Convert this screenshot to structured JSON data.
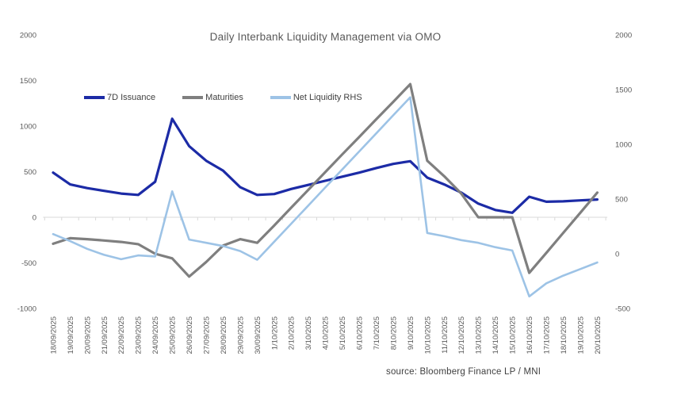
{
  "chart": {
    "title": "Daily Interbank Liquidity Management via OMO",
    "source": "source: Bloomberg Finance LP / MNI"
  },
  "chart_data": {
    "type": "line",
    "title": "Daily Interbank Liquidity Management via OMO",
    "legend_position": "top",
    "grid": "zero-line-only",
    "categories": [
      "18/09/2025",
      "19/09/2025",
      "20/09/2025",
      "21/09/2025",
      "22/09/2025",
      "23/09/2025",
      "24/09/2025",
      "25/09/2025",
      "26/09/2025",
      "27/09/2025",
      "28/09/2025",
      "29/09/2025",
      "30/09/2025",
      "1/10/2025",
      "2/10/2025",
      "3/10/2025",
      "4/10/2025",
      "5/10/2025",
      "6/10/2025",
      "7/10/2025",
      "8/10/2025",
      "9/10/2025",
      "10/10/2025",
      "11/10/2025",
      "12/10/2025",
      "13/10/2025",
      "14/10/2025",
      "15/10/2025",
      "16/10/2025",
      "17/10/2025",
      "18/10/2025",
      "19/10/2025",
      "20/10/2025"
    ],
    "left_axis": {
      "ticks": [
        2000,
        1500,
        1000,
        500,
        0,
        -500,
        -1000
      ],
      "min": -1000,
      "max": 2000
    },
    "right_axis": {
      "ticks": [
        2000,
        1500,
        1000,
        500,
        0,
        -500
      ],
      "min": -500,
      "max": 2000
    },
    "series": [
      {
        "name": "7D Issuance",
        "axis": "left",
        "color": "#1c2ba6",
        "width": 3.2,
        "values": [
          490,
          360,
          320,
          290,
          260,
          245,
          390,
          1080,
          780,
          620,
          510,
          330,
          245,
          255,
          310,
          355,
          400,
          445,
          490,
          540,
          585,
          615,
          435,
          360,
          270,
          150,
          80,
          50,
          225,
          170,
          175,
          185,
          195
        ]
      },
      {
        "name": "Maturities",
        "axis": "left",
        "color": "#7f7f7f",
        "width": 3.2,
        "values": [
          -290,
          -230,
          -240,
          -255,
          -270,
          -295,
          -400,
          -450,
          -650,
          -490,
          -310,
          -240,
          -280,
          -90,
          105,
          300,
          495,
          690,
          880,
          1075,
          1265,
          1460,
          620,
          450,
          260,
          0,
          0,
          0,
          -610,
          -390,
          -170,
          50,
          270
        ]
      },
      {
        "name": "Net Liquidity RHS",
        "axis": "right",
        "color": "#9dc3e6",
        "width": 2.6,
        "values": [
          180,
          115,
          45,
          -10,
          -50,
          -15,
          -25,
          570,
          130,
          100,
          70,
          25,
          -55,
          110,
          275,
          440,
          605,
          770,
          935,
          1100,
          1265,
          1430,
          190,
          160,
          125,
          100,
          60,
          30,
          -390,
          -270,
          -200,
          -140,
          -80
        ]
      }
    ]
  }
}
